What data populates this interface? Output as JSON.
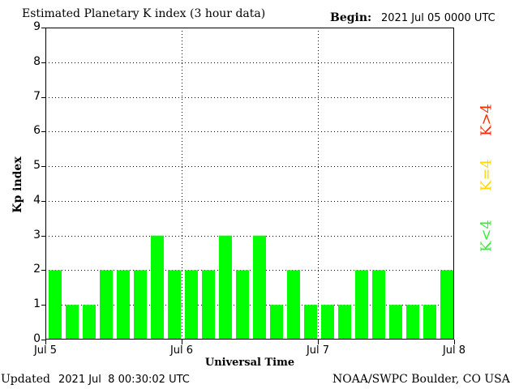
{
  "header": {
    "title": "Estimated Planetary K index (3 hour data)",
    "begin_label": "Begin:",
    "begin_value": "2021 Jul 05 0000 UTC"
  },
  "footer": {
    "updated_label": "Updated",
    "updated_value": "2021 Jul  8 00:30:02 UTC",
    "credit": "NOAA/SWPC Boulder, CO USA"
  },
  "legend": {
    "high": "K>4",
    "mid": "K=4",
    "low": "K<4",
    "colors": {
      "high": "#ff2a00",
      "mid": "#ffd800",
      "low": "#33ee33"
    }
  },
  "chart_data": {
    "type": "bar",
    "title": "Estimated Planetary K index (3 hour data)",
    "xlabel": "Universal Time",
    "ylabel": "Kp index",
    "ylim": [
      0,
      9
    ],
    "yticks": [
      "0",
      "1",
      "2",
      "3",
      "4",
      "5",
      "6",
      "7",
      "8",
      "9"
    ],
    "xticks": [
      "Jul 5",
      "Jul 6",
      "Jul 7",
      "Jul 8"
    ],
    "interval_hours": 3,
    "grid": true,
    "bar_color": "#00ff00",
    "values": [
      2,
      1,
      1,
      2,
      2,
      2,
      3,
      2,
      2,
      2,
      3,
      2,
      3,
      1,
      2,
      1,
      1,
      1,
      2,
      2,
      1,
      1,
      1,
      2
    ]
  }
}
